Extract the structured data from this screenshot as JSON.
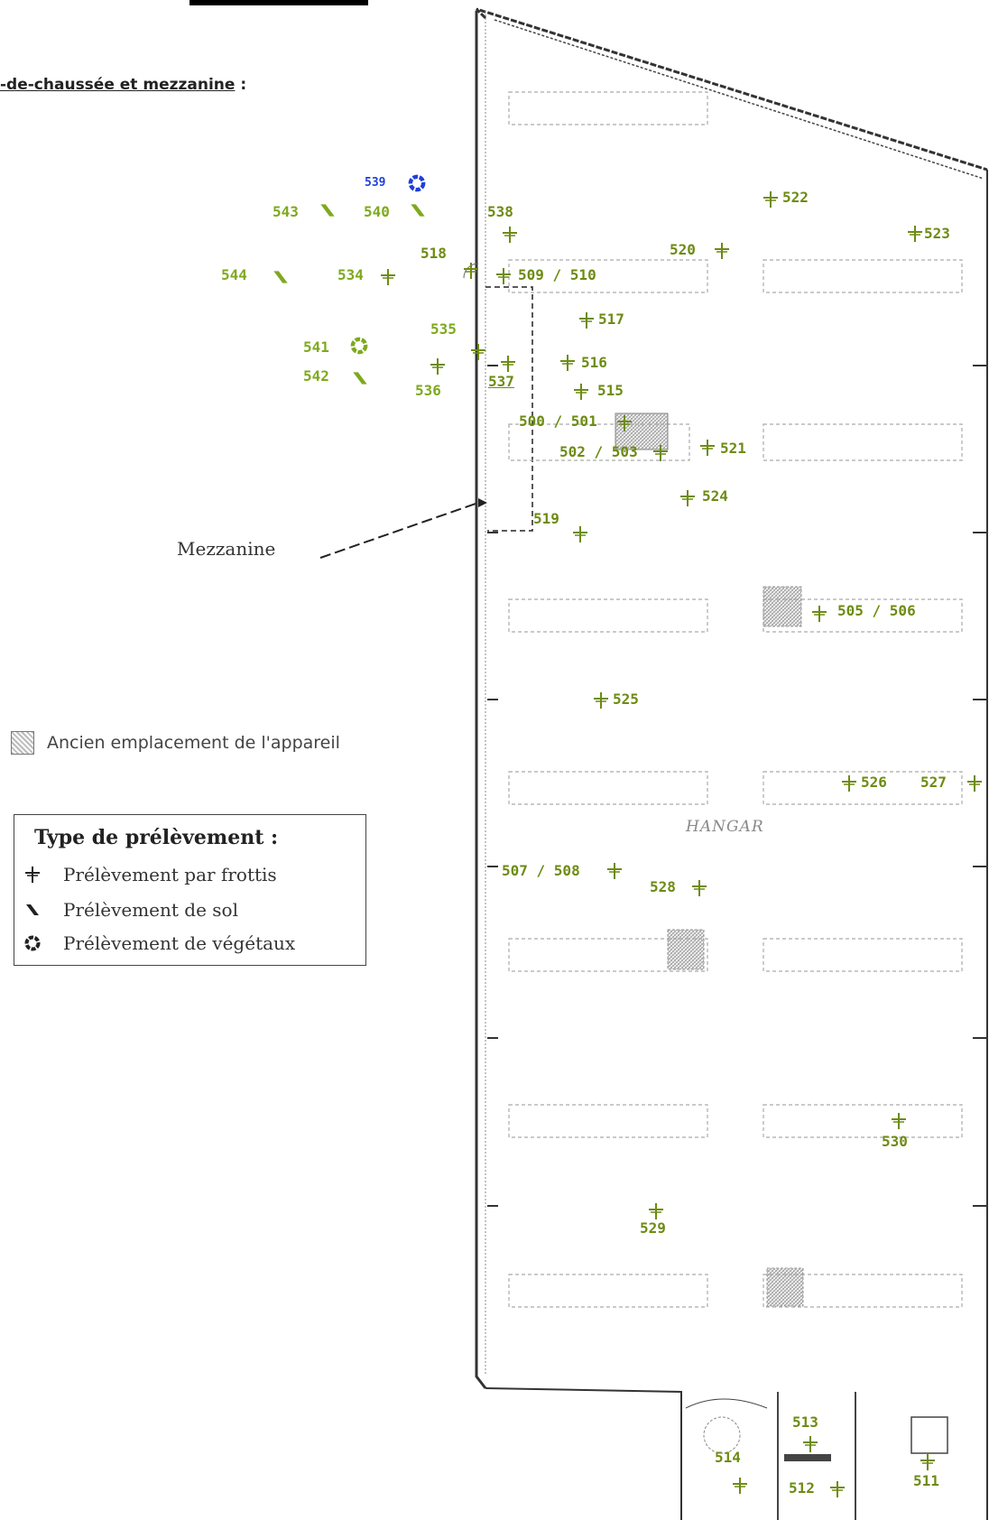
{
  "heading": "-de-chaussée et mezzanine",
  "heading_suffix": " :",
  "mezzanine_label": "Mezzanine",
  "ancien_label": "Ancien emplacement de l'appareil",
  "legend": {
    "title": "Type de prélèvement :",
    "items": [
      {
        "icon": "cross-marker-icon",
        "label": "Prélèvement par frottis"
      },
      {
        "icon": "soil-sample-icon",
        "label": "Prélèvement de sol"
      },
      {
        "icon": "vegetation-ring-icon",
        "label": "Prélèvement de végétaux"
      }
    ]
  },
  "hangar_label": "HANGAR",
  "colors": {
    "frottis": "#6d8b12",
    "sol": "#7ea91e",
    "vegetaux_green": "#7ea91e",
    "vegetaux_blue": "#1f3fd8"
  },
  "labels": {
    "l539": "539",
    "l543": "543",
    "l540": "540",
    "l538": "538",
    "l544": "544",
    "l534": "534",
    "l518": "518",
    "l509": "509 / 510",
    "l520": "520",
    "l522": "522",
    "l523": "523",
    "l517": "517",
    "l535": "535",
    "l541": "541",
    "l542": "542",
    "l536": "536",
    "l537": "537",
    "l516": "516",
    "l515": "515",
    "l500": "500 / 501",
    "l502": "502 / 503",
    "l521": "521",
    "l524": "524",
    "l519": "519",
    "l505": "505 / 506",
    "l525": "525",
    "l526": "526",
    "l527": "527",
    "l507": "507 / 508",
    "l528": "528",
    "l530": "530",
    "l529": "529",
    "l513": "513",
    "l514": "514",
    "l511": "511",
    "l512": "512"
  }
}
